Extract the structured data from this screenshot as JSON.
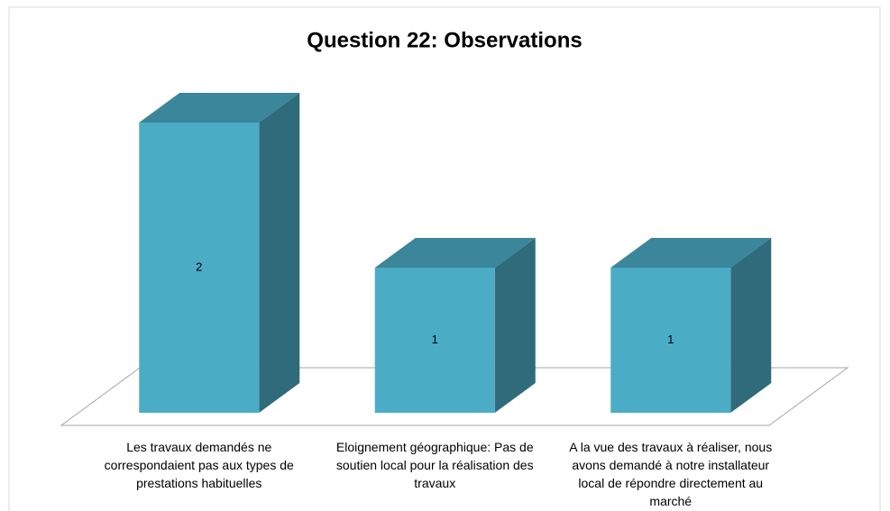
{
  "chart_data": {
    "type": "bar3d",
    "title": "Question 22: Observations",
    "categories": [
      "Les travaux demandés ne correspondaient pas aux types de prestations habituelles",
      "Eloignement géographique: Pas de soutien local pour la réalisation des travaux",
      "A la vue des travaux à réaliser, nous avons demandé à notre installateur local de répondre directement au marché"
    ],
    "values": [
      2,
      1,
      1
    ],
    "color": "#4bacc6"
  }
}
